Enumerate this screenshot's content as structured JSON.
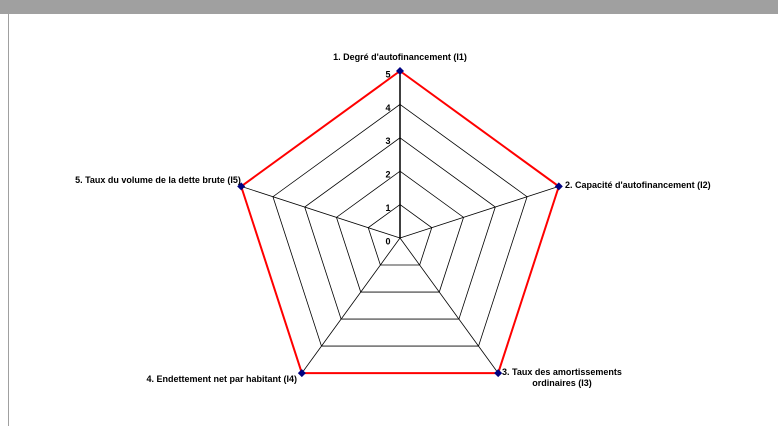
{
  "chart_data": {
    "type": "radar",
    "categories": [
      "1. Degré d'autofinancement (I1)",
      "2. Capacité d'autofinancement (I2)",
      "3. Taux des amortissements ordinaires (I3)",
      "4. Endettement net par habitant (I4)",
      "5. Taux du volume de la dette brute (I5)"
    ],
    "values": [
      5,
      5,
      5,
      5,
      5
    ],
    "color": "#ff0000",
    "marker_color": "#000080",
    "rlim": [
      0,
      5
    ],
    "rticks": [
      0,
      1,
      2,
      3,
      4,
      5
    ],
    "grid": true
  }
}
